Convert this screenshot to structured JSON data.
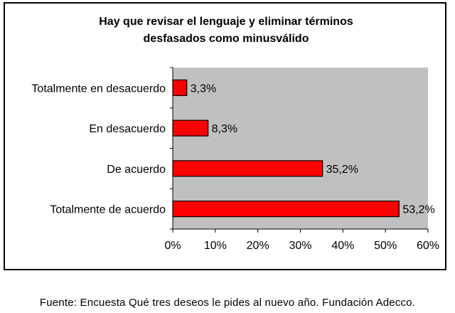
{
  "chart_data": {
    "type": "bar",
    "orientation": "horizontal",
    "title_lines": [
      "Hay que revisar el lenguaje y eliminar términos",
      "desfasados como minusválido"
    ],
    "categories": [
      "Totalmente en desacuerdo",
      "En desacuerdo",
      "De acuerdo",
      "Totalmente de acuerdo"
    ],
    "values": [
      3.3,
      8.3,
      35.2,
      53.2
    ],
    "value_labels": [
      "3,3%",
      "8,3%",
      "35,2%",
      "53,2%"
    ],
    "xticks": [
      0,
      10,
      20,
      30,
      40,
      50,
      60
    ],
    "xtick_labels": [
      "0%",
      "10%",
      "20%",
      "30%",
      "40%",
      "50%",
      "60%"
    ],
    "xlim": [
      0,
      60
    ],
    "plot_background": "#c0c0c0",
    "bar_color": "#ff0000",
    "grid": false,
    "legend": "none"
  },
  "source_note": "Fuente: Encuesta Qué tres deseos le pides al nuevo año. Fundación Adecco."
}
